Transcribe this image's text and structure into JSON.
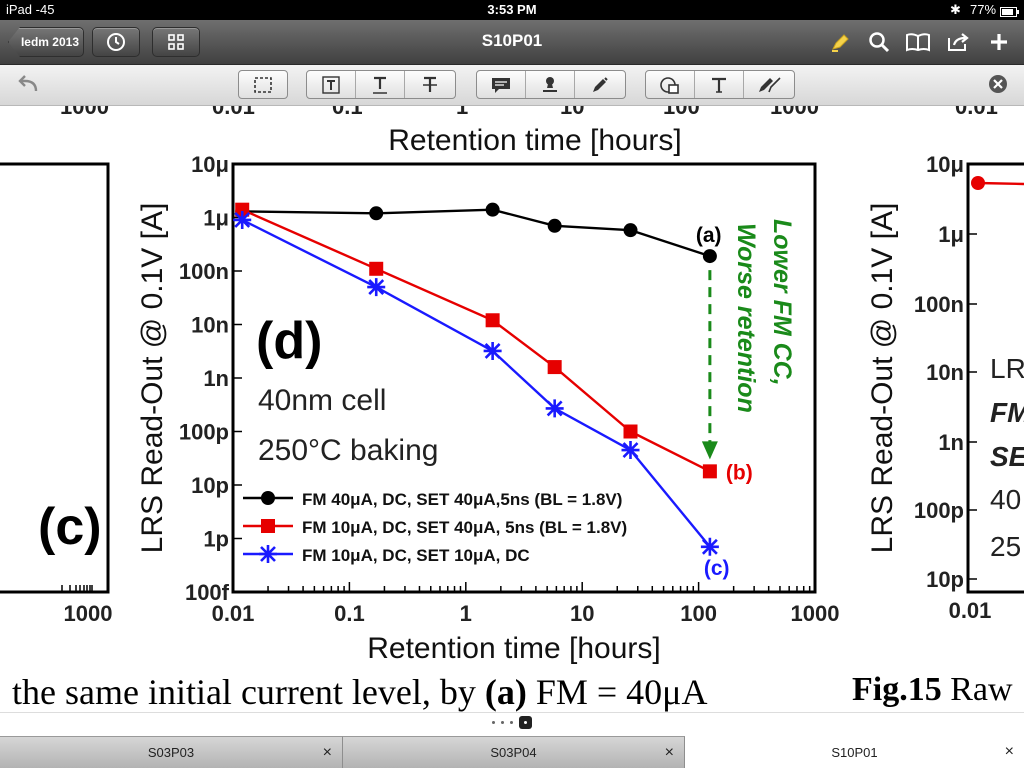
{
  "status_bar": {
    "device": "iPad -45",
    "time": "3:53 PM",
    "battery": "77%"
  },
  "nav_bar": {
    "back_label": "Iedm 2013",
    "title": "S10P01",
    "left_icons": [
      "clock-icon",
      "grid-icon"
    ],
    "right_icons": [
      "highlighter-icon",
      "search-icon",
      "book-icon",
      "share-icon",
      "plus-icon"
    ]
  },
  "toolbar": {
    "groups": [
      [
        "select-rectangle"
      ],
      [
        "text-box",
        "underline-text",
        "strikethrough-text"
      ],
      [
        "comment",
        "stamp",
        "pen"
      ],
      [
        "shape",
        "typewriter",
        "pencil"
      ]
    ]
  },
  "document": {
    "top_axis_tick_labels": [
      "1000",
      "0.01",
      "0.1",
      "1",
      "10",
      "100",
      "1000",
      "0.01"
    ],
    "top_axis_label": "Retention time [hours]",
    "left_panel_label": "(c)",
    "left_panel_tick": "1000",
    "caption_text": "the same initial current level, by ",
    "caption_bold": "(a)",
    "caption_rest": " FM = 40μA",
    "fig_label": "Fig.15",
    "fig_rest": " Raw",
    "right_panel": {
      "ylabel": "LRS Read-Out @ 0.1V [A]",
      "ytick_labels": [
        "10μ",
        "1μ",
        "100n",
        "10n",
        "1n",
        "100p",
        "10p"
      ],
      "xtick_label": "0.01",
      "partial_text": [
        "LRS",
        "FM",
        "SE",
        "40",
        "25"
      ]
    }
  },
  "chart_data": {
    "type": "line",
    "panel_label": "(d)",
    "xlabel": "Retention time [hours]",
    "ylabel": "LRS Read-Out @ 0.1V [A]",
    "x_scale": "log",
    "y_scale": "log",
    "xlim": [
      0.01,
      1000
    ],
    "ylim": [
      1e-13,
      1e-05
    ],
    "xtick_labels": [
      "0.01",
      "0.1",
      "1",
      "10",
      "100",
      "1000"
    ],
    "ytick_labels": [
      "10μ",
      "1μ",
      "100n",
      "10n",
      "1n",
      "100p",
      "10p",
      "1p",
      "100f"
    ],
    "annotations": [
      "40nm cell",
      "250°C baking"
    ],
    "arrow_text": [
      "Lower FM CC,",
      "Worse retention"
    ],
    "series": [
      {
        "name": "FM 40μA, DC, SET 40μA,5ns (BL = 1.8V)",
        "color": "#000000",
        "marker": "circle",
        "point_label": "(a)",
        "x": [
          0.012,
          0.17,
          1.7,
          5.8,
          26,
          125
        ],
        "y": [
          1.3e-06,
          1.2e-06,
          1.4e-06,
          7e-07,
          5.8e-07,
          1.9e-07
        ]
      },
      {
        "name": "FM 10μA, DC, SET 40μA, 5ns (BL = 1.8V)",
        "color": "#e60000",
        "marker": "square",
        "point_label": "(b)",
        "x": [
          0.012,
          0.17,
          1.7,
          5.8,
          26,
          125
        ],
        "y": [
          1.4e-06,
          1.1e-07,
          1.2e-08,
          1.6e-09,
          1e-10,
          1.8e-11
        ]
      },
      {
        "name": "FM 10μA, DC, SET 10μA, DC",
        "color": "#1a1aff",
        "marker": "asterisk",
        "point_label": "(c)",
        "x": [
          0.012,
          0.17,
          1.7,
          5.8,
          26,
          125
        ],
        "y": [
          9e-07,
          5e-08,
          3.2e-09,
          2.7e-10,
          4.5e-11,
          7e-13
        ]
      }
    ],
    "arrow_color": "#1a8a1a"
  },
  "page_indicator": {
    "pages": 4,
    "current": 4
  },
  "tabs": [
    {
      "label": "S03P03",
      "active": false,
      "close": "×"
    },
    {
      "label": "S03P04",
      "active": false,
      "close": "×"
    },
    {
      "label": "S10P01",
      "active": true,
      "close": "×"
    }
  ]
}
